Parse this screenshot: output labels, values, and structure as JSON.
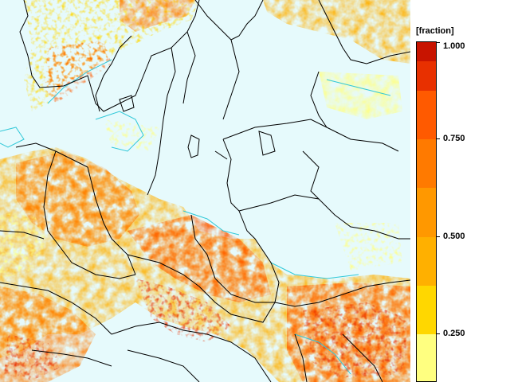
{
  "legend": {
    "unit": "[fraction]",
    "ticks": [
      {
        "value": 1.0,
        "label": "1.000"
      },
      {
        "value": 0.75,
        "label": "0.750"
      },
      {
        "value": 0.5,
        "label": "0.500"
      },
      {
        "value": 0.25,
        "label": "0.250"
      }
    ],
    "bins": [
      {
        "from": 0.125,
        "to": 0.25,
        "color": "#ffff80"
      },
      {
        "from": 0.25,
        "to": 0.375,
        "color": "#ffd700"
      },
      {
        "from": 0.375,
        "to": 0.5,
        "color": "#ffb000"
      },
      {
        "from": 0.5,
        "to": 0.625,
        "color": "#ff9800"
      },
      {
        "from": 0.625,
        "to": 0.75,
        "color": "#ff7a00"
      },
      {
        "from": 0.75,
        "to": 0.875,
        "color": "#ff5a00"
      },
      {
        "from": 0.875,
        "to": 0.95,
        "color": "#e83000"
      },
      {
        "from": 0.95,
        "to": 1.0,
        "color": "#c81400"
      }
    ]
  },
  "colors": {
    "sea": "#e6fafc",
    "coast": "#30c8d8",
    "border": "#000000"
  }
}
